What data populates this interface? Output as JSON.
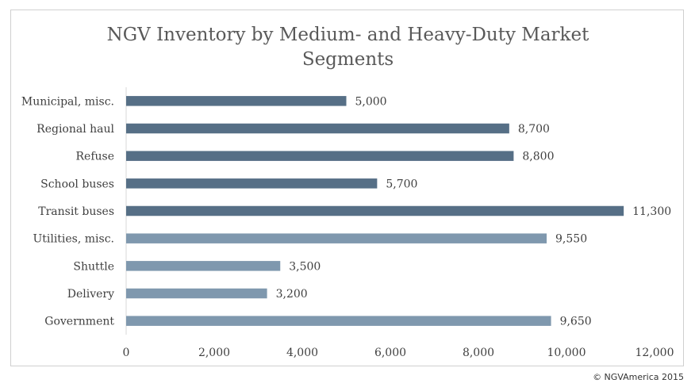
{
  "title": "NGV Inventory by Medium- and Heavy-Duty Market\nSegments",
  "footer": "© NGVAmerica 2015",
  "colors": {
    "dark_bar": "#566f86",
    "light_bar": "#7f98ae",
    "axis": "#d9d9d9"
  },
  "chart_data": {
    "type": "bar",
    "orientation": "horizontal",
    "title": "NGV Inventory by Medium- and Heavy-Duty Market Segments",
    "categories": [
      "Municipal, misc.",
      "Regional haul",
      "Refuse",
      "School buses",
      "Transit buses",
      "Utilities, misc.",
      "Shuttle",
      "Delivery",
      "Government"
    ],
    "values": [
      5000,
      8700,
      8800,
      5700,
      11300,
      9550,
      3500,
      3200,
      9650
    ],
    "value_labels": [
      "5,000",
      "8,700",
      "8,800",
      "5,700",
      "11,300",
      "9,550",
      "3,500",
      "3,200",
      "9,650"
    ],
    "bar_shade": [
      "dark",
      "dark",
      "dark",
      "dark",
      "dark",
      "light",
      "light",
      "light",
      "light"
    ],
    "xlim": [
      0,
      12000
    ],
    "xticks": [
      0,
      2000,
      4000,
      6000,
      8000,
      10000,
      12000
    ],
    "xtick_labels": [
      "0",
      "2,000",
      "4,000",
      "6,000",
      "8,000",
      "10,000",
      "12,000"
    ],
    "grid": false,
    "legend": "none"
  }
}
